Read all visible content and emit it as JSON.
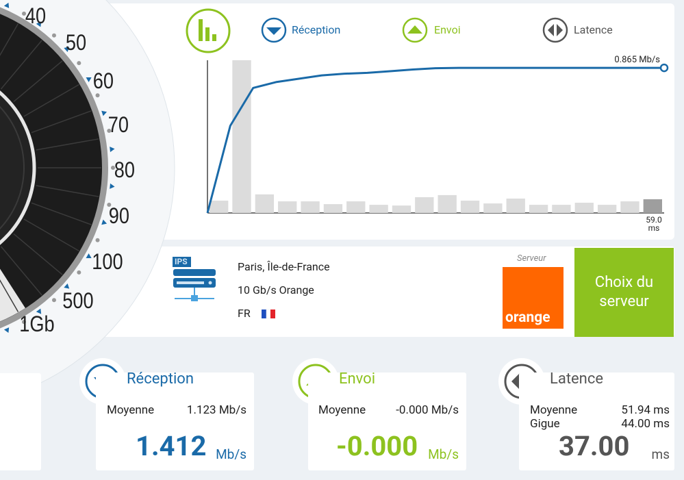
{
  "gauge": {
    "labels": [
      "40",
      "50",
      "60",
      "70",
      "80",
      "90",
      "100",
      "500",
      "1Gb"
    ]
  },
  "legend": {
    "download": "Réception",
    "upload": "Envoi",
    "latency": "Latence"
  },
  "chart": {
    "speed_values": [
      0,
      0.52,
      0.745,
      0.78,
      0.8,
      0.82,
      0.83,
      0.835,
      0.845,
      0.855,
      0.863,
      0.865,
      0.865,
      0.865,
      0.865,
      0.865,
      0.865,
      0.865,
      0.865,
      0.865,
      0.865
    ],
    "speed_end_label": "0.865 Mb/s",
    "latency_values": [
      53,
      658,
      80,
      50,
      50,
      38,
      50,
      35,
      32,
      68,
      77,
      53,
      41,
      62,
      35,
      35,
      44,
      35,
      50,
      59.0
    ],
    "latency_end_value": "59.0",
    "latency_end_unit": "ms"
  },
  "server": {
    "city": "Paris, Île-de-France",
    "provider": "10 Gb/s Orange",
    "country": "FR",
    "icon_label": "IPS",
    "caption": "Serveur",
    "logo": "orange",
    "button": "Choix du serveur"
  },
  "cards": {
    "download": {
      "title": "Réception",
      "average_label": "Moyenne",
      "average": "1.123 Mb/s",
      "value": "1.412",
      "unit": "Mb/s"
    },
    "upload": {
      "title": "Envoi",
      "average_label": "Moyenne",
      "average": "-0.000 Mb/s",
      "value": "-0.000",
      "unit": "Mb/s"
    },
    "latency": {
      "title": "Latence",
      "average_label": "Moyenne",
      "average": "51.94 ms",
      "jitter_label": "Gigue",
      "jitter": "44.00 ms",
      "value": "37.00",
      "unit": "ms"
    }
  }
}
